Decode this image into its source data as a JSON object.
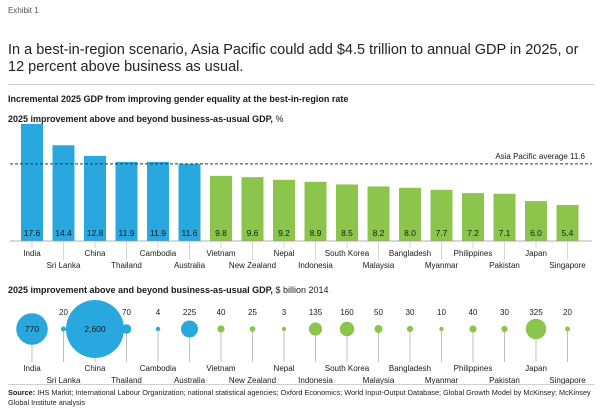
{
  "exhibit": "Exhibit 1",
  "headline": "In a best-in-region scenario, Asia Pacific could add $4.5 trillion to annual GDP in 2025, or 12 percent above business as usual.",
  "subtitle": "Incremental 2025 GDP from improving gender equality at the best-in-region rate",
  "colors": {
    "top_group": "#29a8e0",
    "bottom_group": "#8cc54b",
    "avg_line": "#333333",
    "axis": "#999999"
  },
  "chart_data": [
    {
      "type": "bar",
      "title": "2025 improvement above and beyond business-as-usual GDP,",
      "unit": "%",
      "categories": [
        "India",
        "Sri Lanka",
        "China",
        "Thailand",
        "Cambodia",
        "Australia",
        "Vietnam",
        "New Zealand",
        "Nepal",
        "Indonesia",
        "South Korea",
        "Malaysia",
        "Bangladesh",
        "Myanmar",
        "Philippines",
        "Pakistan",
        "Japan",
        "Singapore"
      ],
      "values": [
        17.6,
        14.4,
        12.8,
        11.9,
        11.9,
        11.6,
        9.8,
        9.6,
        9.2,
        8.9,
        8.5,
        8.2,
        8.0,
        7.7,
        7.2,
        7.1,
        6.0,
        5.4
      ],
      "value_labels": [
        "17.6",
        "14.4",
        "12.8",
        "11.9",
        "11.9",
        "11.6",
        "9.8",
        "9.6",
        "9.2",
        "8.9",
        "8.5",
        "8.2",
        "8.0",
        "7.7",
        "7.2",
        "7.1",
        "6.0",
        "5.4"
      ],
      "color_groups": [
        "blue",
        "blue",
        "blue",
        "blue",
        "blue",
        "blue",
        "green",
        "green",
        "green",
        "green",
        "green",
        "green",
        "green",
        "green",
        "green",
        "green",
        "green",
        "green"
      ],
      "reference_line": {
        "label": "Asia Pacific average 11.6",
        "value": 11.6
      },
      "ylim": [
        0,
        18
      ]
    },
    {
      "type": "bubble",
      "title": "2025 improvement above and beyond business-as-usual GDP,",
      "unit": "$ billion 2014",
      "categories": [
        "India",
        "Sri Lanka",
        "China",
        "Thailand",
        "Cambodia",
        "Australia",
        "Vietnam",
        "New Zealand",
        "Nepal",
        "Indonesia",
        "South Korea",
        "Malaysia",
        "Bangladesh",
        "Myanmar",
        "Philippines",
        "Pakistan",
        "Japan",
        "Singapore"
      ],
      "values": [
        770,
        20,
        2600,
        70,
        4,
        225,
        40,
        25,
        3,
        135,
        160,
        50,
        30,
        10,
        40,
        30,
        325,
        20
      ],
      "value_labels": [
        "770",
        "20",
        "2,600",
        "70",
        "4",
        "225",
        "40",
        "25",
        "3",
        "135",
        "160",
        "50",
        "30",
        "10",
        "40",
        "30",
        "325",
        "20"
      ],
      "color_groups": [
        "blue",
        "blue",
        "blue",
        "blue",
        "blue",
        "blue",
        "green",
        "green",
        "green",
        "green",
        "green",
        "green",
        "green",
        "green",
        "green",
        "green",
        "green",
        "green"
      ]
    }
  ],
  "sources_label": "Source:",
  "sources_text": "IHS Markit; International Labour Organization; national statistical agencies; Oxford Economics; World Input-Output Database; Global Growth Model by McKinsey; McKinsey Global Institute analysis"
}
